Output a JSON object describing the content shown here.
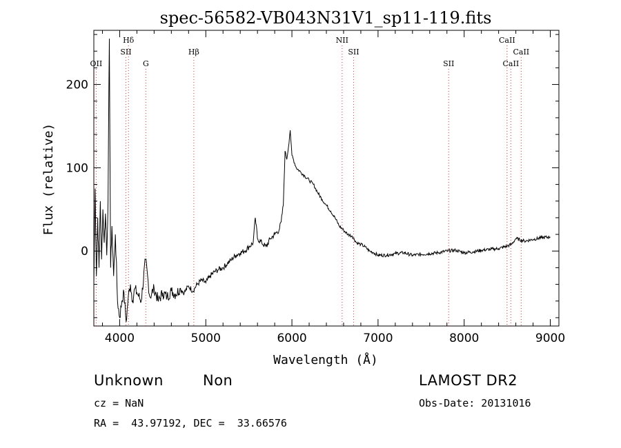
{
  "chart_data": {
    "type": "line",
    "title": "spec-56582-VB043N31V1_sp11-119.fits",
    "xlabel": "Wavelength (Å)",
    "ylabel": "Flux (relative)",
    "xlim": [
      3700,
      9100
    ],
    "ylim": [
      -90,
      265
    ],
    "x_ticks": [
      4000,
      5000,
      6000,
      7000,
      8000,
      9000
    ],
    "y_ticks": [
      0,
      100,
      200
    ],
    "grid": false,
    "line_color": "#000000",
    "marker_color": "#cc3333",
    "spectral_lines": [
      {
        "name": "OII",
        "wavelength": 3727,
        "row": 3
      },
      {
        "name": "Hδ",
        "wavelength": 4102,
        "row": 1
      },
      {
        "name": "SII",
        "wavelength": 4072,
        "row": 2
      },
      {
        "name": "G",
        "wavelength": 4304,
        "row": 3
      },
      {
        "name": "Hβ",
        "wavelength": 4861,
        "row": 2
      },
      {
        "name": "NII",
        "wavelength": 6583,
        "row": 1
      },
      {
        "name": "SII",
        "wavelength": 6716,
        "row": 2
      },
      {
        "name": "SII",
        "wavelength": 7820,
        "row": 3
      },
      {
        "name": "CaII",
        "wavelength": 8498,
        "row": 1
      },
      {
        "name": "CaII",
        "wavelength": 8542,
        "row": 3
      },
      {
        "name": "CaII",
        "wavelength": 8662,
        "row": 2
      }
    ],
    "series": [
      {
        "x": [
          3700,
          3715,
          3730,
          3745,
          3760,
          3775,
          3790,
          3805,
          3820,
          3835,
          3850,
          3865,
          3880,
          3895,
          3910,
          3930,
          3950,
          3975,
          4000,
          4025,
          4050,
          4075,
          4100,
          4125,
          4150,
          4175,
          4200,
          4250,
          4300,
          4350,
          4400,
          4450,
          4500,
          4550,
          4600,
          4650,
          4700,
          4750,
          4800,
          4850,
          4900,
          4950,
          5000,
          5050,
          5100,
          5150,
          5200,
          5250,
          5300,
          5350,
          5400,
          5450,
          5500,
          5550,
          5575,
          5600,
          5650,
          5700,
          5750,
          5800,
          5850,
          5875,
          5900,
          5920,
          5940,
          5960,
          5980,
          6000,
          6050,
          6100,
          6150,
          6200,
          6250,
          6300,
          6350,
          6400,
          6450,
          6500,
          6550,
          6600,
          6650,
          6700,
          6750,
          6800,
          6850,
          6900,
          6950,
          7000,
          7100,
          7200,
          7300,
          7400,
          7500,
          7600,
          7700,
          7800,
          7900,
          8000,
          8100,
          8200,
          8300,
          8400,
          8500,
          8550,
          8600,
          8700,
          8800,
          8900,
          9000
        ],
        "y": [
          -40,
          75,
          -30,
          40,
          -20,
          60,
          -10,
          50,
          10,
          45,
          -5,
          60,
          255,
          -20,
          30,
          -30,
          20,
          -60,
          -80,
          -60,
          -50,
          -85,
          -55,
          -40,
          -60,
          -45,
          -50,
          -60,
          -10,
          -55,
          -45,
          -60,
          -50,
          -55,
          -48,
          -52,
          -45,
          -50,
          -42,
          -48,
          -40,
          -35,
          -38,
          -30,
          -25,
          -22,
          -20,
          -15,
          -10,
          -5,
          -2,
          0,
          5,
          10,
          40,
          15,
          10,
          5,
          15,
          20,
          25,
          35,
          55,
          120,
          110,
          125,
          145,
          115,
          100,
          95,
          90,
          85,
          80,
          70,
          62,
          55,
          48,
          40,
          30,
          25,
          20,
          18,
          10,
          8,
          5,
          0,
          -2,
          -5,
          -5,
          -3,
          -2,
          -5,
          -4,
          -3,
          -2,
          0,
          1,
          -2,
          -1,
          1,
          2,
          3,
          6,
          8,
          15,
          12,
          14,
          16,
          17
        ]
      }
    ],
    "info": {
      "class": "Unknown",
      "subclass": "Non",
      "survey": "LAMOST DR2",
      "cz": "cz = NaN",
      "obs_date": "Obs-Date: 20131016",
      "coords": "RA =  43.97192, DEC =  33.66576"
    }
  }
}
